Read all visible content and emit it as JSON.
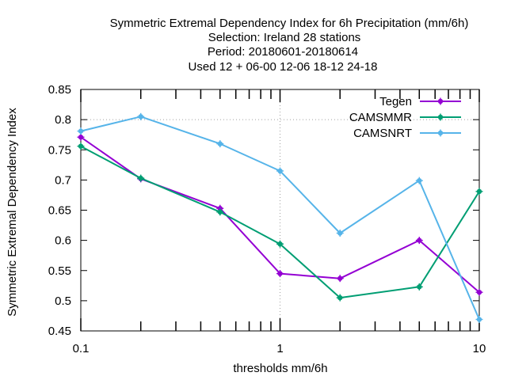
{
  "chart_data": {
    "type": "line",
    "title_lines": [
      "Symmetric Extremal Dependency Index  for 6h Precipitation (mm/6h)",
      "Selection: Ireland      28 stations",
      "Period: 20180601-20180614",
      "Used  12 + 06-00 12-06 18-12 24-18"
    ],
    "xlabel": "thresholds mm/6h",
    "ylabel": "Symmetric Extremal Dependency Index",
    "x_scale": "log",
    "xlim": [
      0.1,
      10
    ],
    "ylim": [
      0.45,
      0.85
    ],
    "x_ticks": [
      {
        "value": 0.1,
        "label": "0.1"
      },
      {
        "value": 1,
        "label": "1"
      },
      {
        "value": 10,
        "label": "10"
      }
    ],
    "y_ticks": [
      {
        "value": 0.45,
        "label": "0.45"
      },
      {
        "value": 0.5,
        "label": "0.5"
      },
      {
        "value": 0.55,
        "label": "0.55"
      },
      {
        "value": 0.6,
        "label": "0.6"
      },
      {
        "value": 0.65,
        "label": "0.65"
      },
      {
        "value": 0.7,
        "label": "0.7"
      },
      {
        "value": 0.75,
        "label": "0.75"
      },
      {
        "value": 0.8,
        "label": "0.8"
      },
      {
        "value": 0.85,
        "label": "0.85"
      }
    ],
    "grid": "dotted lines at x = 1 and y = 0.8",
    "legend_position": "top-right",
    "x": [
      0.1,
      0.2,
      0.5,
      1,
      2,
      5,
      10
    ],
    "series": [
      {
        "name": "Tegen",
        "color": "#9400d3",
        "values": [
          0.771,
          0.702,
          0.653,
          0.545,
          0.537,
          0.6,
          0.514
        ]
      },
      {
        "name": "CAMSMMR",
        "color": "#009e73",
        "values": [
          0.756,
          0.703,
          0.647,
          0.594,
          0.505,
          0.523,
          0.681
        ]
      },
      {
        "name": "CAMSNRT",
        "color": "#56b4e9",
        "values": [
          0.781,
          0.805,
          0.76,
          0.715,
          0.612,
          0.699,
          0.469
        ]
      }
    ]
  }
}
